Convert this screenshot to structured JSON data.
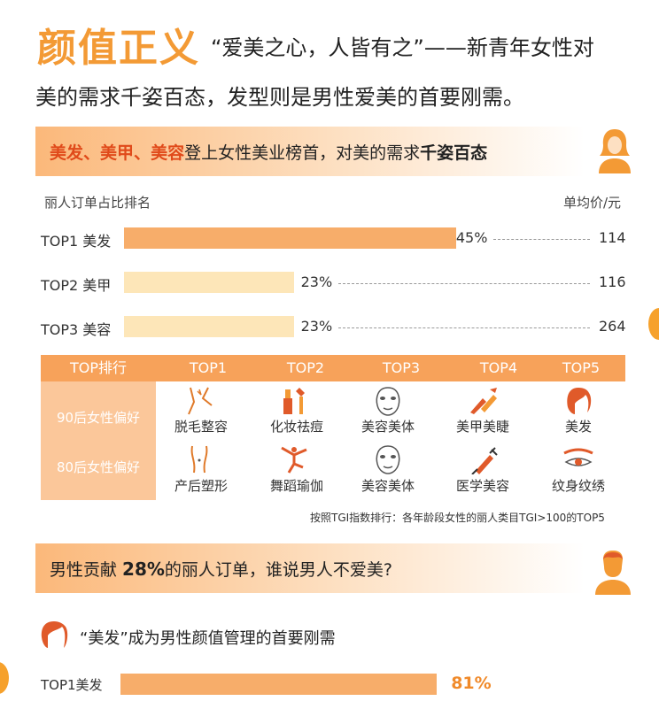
{
  "header": {
    "title_big": "颜值正义",
    "title_rest": "“爱美之心，人皆有之”——新青年女性对",
    "title_line2": "美的需求千姿百态，发型则是男性爱美的首要刚需。"
  },
  "female_section": {
    "banner_hl1": "美发",
    "banner_sep1": "、",
    "banner_hl2": "美甲",
    "banner_sep2": "、",
    "banner_hl3": "美容",
    "banner_mid": "登上女性美业榜首，对美的需求",
    "banner_bold": "千姿百态",
    "left_caption": "丽人订单占比排名",
    "right_caption": "单均价/元"
  },
  "colors": {
    "accent": "#f39a35",
    "highlight": "#e04a1a",
    "bar_top": "#f7ad6a",
    "bar_other": "#fde6b8"
  },
  "chart_data": [
    {
      "type": "bar",
      "categories": [
        "TOP1 美发",
        "TOP2 美甲",
        "TOP3 美容"
      ],
      "values": [
        45,
        23,
        23
      ],
      "value_labels": [
        "45%",
        "23%",
        "23%"
      ],
      "prices": [
        "114",
        "116",
        "264"
      ],
      "xlim": [
        0,
        100
      ]
    },
    {
      "type": "bar",
      "categories": [
        "TOP1美发"
      ],
      "values": [
        81
      ],
      "value_labels": [
        "81%"
      ],
      "xlim": [
        0,
        100
      ]
    }
  ],
  "table": {
    "header_first": "TOP排行",
    "headers": [
      "TOP1",
      "TOP2",
      "TOP3",
      "TOP4",
      "TOP5"
    ],
    "row_labels": [
      "90后女性偏好",
      "80后女性偏好"
    ],
    "row90": [
      {
        "label": "脱毛整容",
        "icon": "neck-icon"
      },
      {
        "label": "化妆祛痘",
        "icon": "cosmetics-icon"
      },
      {
        "label": "美容美体",
        "icon": "face-mask-icon"
      },
      {
        "label": "美甲美睫",
        "icon": "nail-brush-icon"
      },
      {
        "label": "美发",
        "icon": "hair-icon"
      }
    ],
    "row80": [
      {
        "label": "产后塑形",
        "icon": "body-shape-icon"
      },
      {
        "label": "舞蹈瑜伽",
        "icon": "dancer-icon"
      },
      {
        "label": "美容美体",
        "icon": "face-mask-icon"
      },
      {
        "label": "医学美容",
        "icon": "syringe-icon"
      },
      {
        "label": "纹身纹绣",
        "icon": "eyebrow-icon"
      }
    ],
    "note": "按照TGI指数排行：各年龄段女性的丽人类目TGI>100的TOP5"
  },
  "male_section": {
    "banner_pre": "男性贡献 ",
    "banner_pct": "28%",
    "banner_post": "的丽人订单，谁说男人不爱美?",
    "sub_title": "“美发”成为男性颜值管理的首要刚需"
  }
}
